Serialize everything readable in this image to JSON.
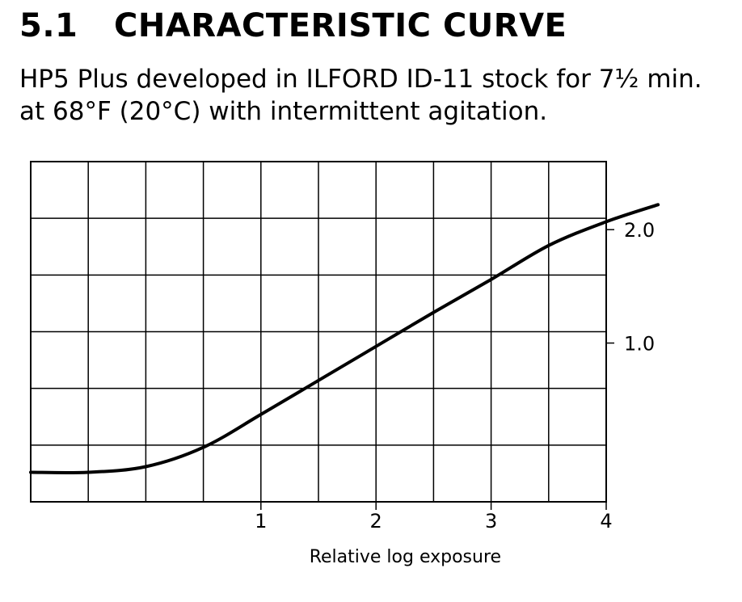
{
  "header": {
    "section_number": "5.1",
    "section_title": "CHARACTERISTIC CURVE",
    "caption_line1": "HP5 Plus developed in ILFORD ID-11 stock for 7½ min.",
    "caption_line2": "at 68°F (20°C) with intermittent agitation."
  },
  "chart_data": {
    "type": "line",
    "title": "",
    "xlabel": "Relative log exposure",
    "ylabel": "",
    "xlim": [
      -1.0,
      4.0
    ],
    "ylim": [
      -0.4,
      2.6
    ],
    "x_ticks": [
      1,
      2,
      3,
      4
    ],
    "x_tick_labels": [
      "1",
      "2",
      "3",
      "4"
    ],
    "y_ticks": [
      1.0,
      2.0
    ],
    "y_tick_labels": [
      "1.0",
      "2.0"
    ],
    "y_axis_side": "right",
    "grid": true,
    "legend": "none",
    "series": [
      {
        "x": [
          -1.0,
          -0.5,
          0.0,
          0.5,
          1.0,
          1.5,
          2.0,
          2.5,
          3.0,
          3.5,
          4.0,
          4.45
        ],
        "y": [
          -0.14,
          -0.14,
          -0.09,
          0.08,
          0.37,
          0.67,
          0.97,
          1.27,
          1.56,
          1.86,
          2.07,
          2.22
        ]
      }
    ]
  },
  "colors": {
    "ink": "#000000",
    "background": "#ffffff"
  }
}
